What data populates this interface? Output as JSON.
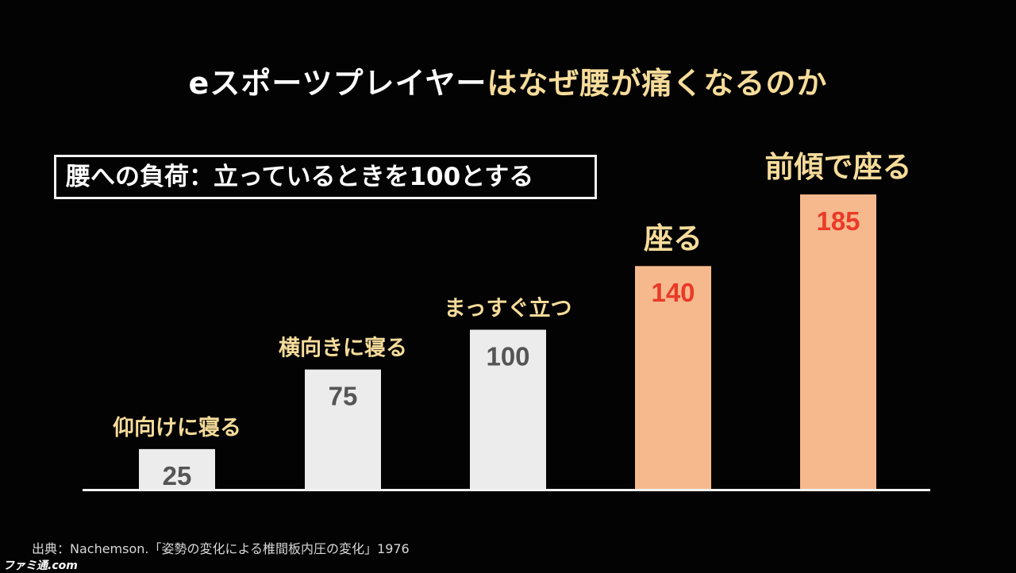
{
  "title": {
    "part1": "eスポーツプレイヤー",
    "part2": "はなぜ腰が痛くなるのか"
  },
  "note": "腰への負荷：立っているときを100とする",
  "source": "出典：Nachemson.「姿勢の変化による椎間板内圧の変化」1976",
  "watermark": "ファミ通.com",
  "colors": {
    "background": "#030303",
    "bar_normal": "#ececec",
    "bar_sitting": "#f6b98e",
    "value_normal": "#555555",
    "value_sitting": "#ea3a28",
    "label": "#f6dc9a",
    "baseline": "#f2f2f2"
  },
  "chart_data": {
    "type": "bar",
    "title": "",
    "xlabel": "",
    "ylabel": "",
    "ylim": [
      0,
      200
    ],
    "grid": false,
    "categories": [
      "仰向けに寝る",
      "横向きに寝る",
      "まっすぐ立つ",
      "座る",
      "前傾で座る"
    ],
    "values": [
      25,
      75,
      100,
      140,
      185
    ],
    "data_labels": [
      "25",
      "75",
      "100",
      "140",
      "185"
    ],
    "highlight": [
      false,
      false,
      false,
      true,
      true
    ]
  }
}
